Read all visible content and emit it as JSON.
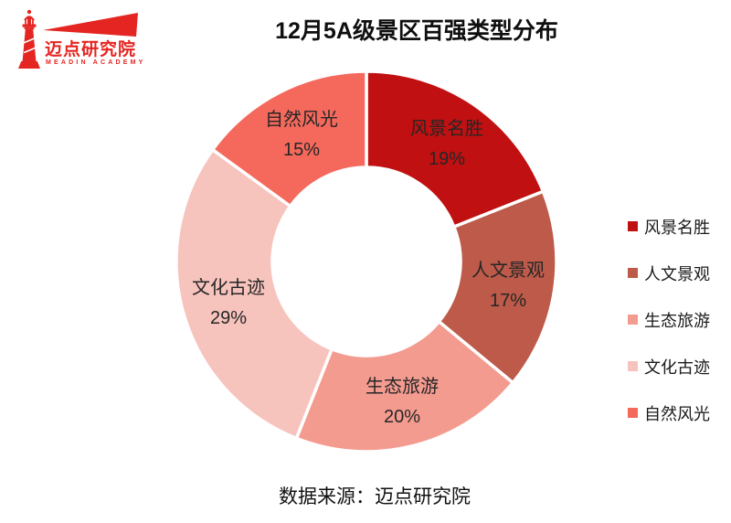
{
  "logo": {
    "name": "迈点研究院",
    "subtitle": "MEADIN ACADEMY",
    "brand_color": "#e42521"
  },
  "header": {
    "title": "12月5A级景区百强类型分布"
  },
  "footer": {
    "source": "数据来源：迈点研究院"
  },
  "chart_data": {
    "type": "pie",
    "donut": true,
    "title": "12月5A级景区百强类型分布",
    "categories": [
      "风景名胜",
      "人文景观",
      "生态旅游",
      "文化古迹",
      "自然风光"
    ],
    "values": [
      19,
      17,
      20,
      29,
      15
    ],
    "labels": [
      "19%",
      "17%",
      "20%",
      "29%",
      "15%"
    ],
    "colors": [
      "#c01011",
      "#bd5a49",
      "#f49b90",
      "#f7c3bd",
      "#f4695c"
    ],
    "unit": "%",
    "start_angle_deg": 0,
    "direction": "clockwise",
    "inner_radius_ratio": 0.495,
    "slice_gap_color": "#ffffff",
    "label_position": "inside",
    "legend_position": "right",
    "source": "数据来源：迈点研究院"
  }
}
